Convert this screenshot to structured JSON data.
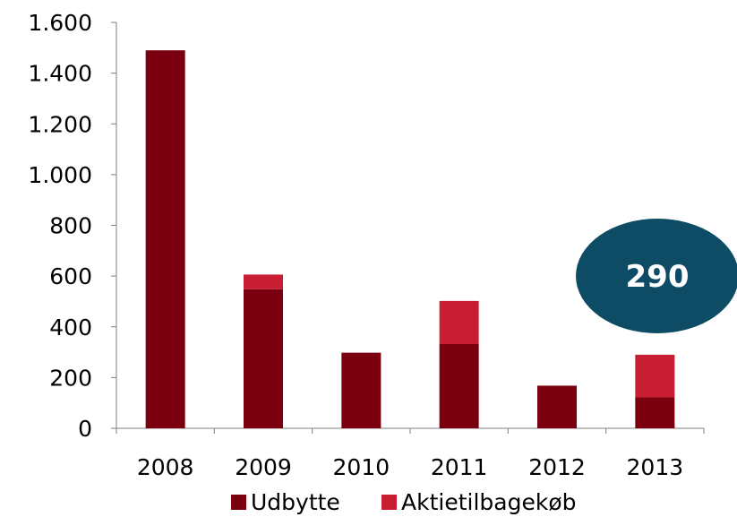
{
  "chart_data": {
    "type": "bar",
    "stacked": true,
    "categories": [
      "2008",
      "2009",
      "2010",
      "2011",
      "2012",
      "2013"
    ],
    "series": [
      {
        "name": "Udbytte",
        "values": [
          1490,
          548,
          298,
          332,
          168,
          122
        ],
        "color": "#7a0010"
      },
      {
        "name": "Aktietilbagekøb",
        "values": [
          0,
          58,
          0,
          170,
          0,
          168
        ],
        "color": "#c81e34"
      }
    ],
    "ylim": [
      0,
      1600
    ],
    "yticks": [
      0,
      200,
      400,
      600,
      800,
      1000,
      1200,
      1400,
      1600
    ],
    "ytick_labels": [
      "0",
      "200",
      "400",
      "600",
      "800",
      "1.000",
      "1.200",
      "1.400",
      "1.600"
    ],
    "grid": false,
    "legend_position": "bottom",
    "annotation": {
      "text": "290",
      "category": "2013",
      "color": "#0e4c66",
      "text_color": "#ffffff"
    }
  }
}
